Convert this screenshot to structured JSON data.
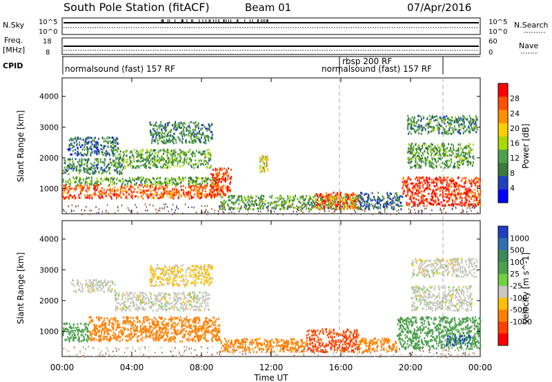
{
  "header": {
    "title": "South Pole Station (fitACF)",
    "beam": "Beam 01",
    "date": "07/Apr/2016"
  },
  "panels": {
    "nsky": {
      "label": "N.Sky",
      "ticks": [
        "10^5",
        "10^0"
      ]
    },
    "nsearch": {
      "label": "N.Search",
      "ticks": [
        "10^5",
        "10^0"
      ]
    },
    "freq": {
      "label_top": "Freq.",
      "label_bottom": "[MHz]",
      "ticks": [
        "18",
        "8"
      ]
    },
    "nave": {
      "label": "Nave",
      "ticks": [
        "60",
        "0"
      ]
    },
    "cpid": {
      "label": "CPID",
      "segments": [
        {
          "label": "normalsound (fast) 157 RF",
          "start": 0,
          "end": 16
        },
        {
          "label": "rbsp 200 RF",
          "start": 16,
          "end": 22
        },
        {
          "label": "normalsound (fast) 157 RF",
          "start": 16,
          "end": 22
        }
      ]
    }
  },
  "chart_data": [
    {
      "type": "heatmap",
      "name": "power",
      "ylabel": "Slant Range [km]",
      "ylim": [
        180,
        4600
      ],
      "yticks": [
        1000,
        2000,
        3000,
        4000
      ],
      "xlim": [
        0,
        24
      ],
      "colorbar": {
        "label": "Power [dB]",
        "ticks": [
          "4",
          "8",
          "12",
          "16",
          "20",
          "24",
          "28"
        ],
        "colors": [
          "#0000ff",
          "#2040c0",
          "#3a7a3a",
          "#4ea04e",
          "#a8d800",
          "#ffd000",
          "#ff9000",
          "#ff5000",
          "#ff0000"
        ]
      },
      "regions": [
        {
          "t0": 0.0,
          "t1": 9.0,
          "r0": 700,
          "r1": 1150,
          "v": 26
        },
        {
          "t0": 0.0,
          "t1": 9.0,
          "r0": 1150,
          "r1": 1400,
          "v": 12
        },
        {
          "t0": 0.0,
          "t1": 3.5,
          "r0": 1500,
          "r1": 2000,
          "v": 10
        },
        {
          "t0": 0.3,
          "t1": 3.2,
          "r0": 2100,
          "r1": 2700,
          "v": 8
        },
        {
          "t0": 3.0,
          "t1": 8.5,
          "r0": 1700,
          "r1": 2300,
          "v": 12
        },
        {
          "t0": 5.0,
          "t1": 8.6,
          "r0": 2500,
          "r1": 3200,
          "v": 10
        },
        {
          "t0": 8.5,
          "t1": 9.7,
          "r0": 800,
          "r1": 1700,
          "v": 28
        },
        {
          "t0": 9.0,
          "t1": 17.0,
          "r0": 350,
          "r1": 800,
          "v": 12
        },
        {
          "t0": 14.5,
          "t1": 17.0,
          "r0": 350,
          "r1": 900,
          "v": 26
        },
        {
          "t0": 17.0,
          "t1": 19.5,
          "r0": 350,
          "r1": 900,
          "v": 8
        },
        {
          "t0": 19.5,
          "t1": 24.0,
          "r0": 450,
          "r1": 1400,
          "v": 28
        },
        {
          "t0": 19.8,
          "t1": 23.6,
          "r0": 1700,
          "r1": 2500,
          "v": 12
        },
        {
          "t0": 19.8,
          "t1": 23.8,
          "r0": 2800,
          "r1": 3400,
          "v": 10
        },
        {
          "t0": 11.3,
          "t1": 11.8,
          "r0": 1500,
          "r1": 2100,
          "v": 18
        }
      ]
    },
    {
      "type": "heatmap",
      "name": "velocity",
      "ylabel": "Slant Range [km]",
      "ylim": [
        180,
        4600
      ],
      "yticks": [
        1000,
        2000,
        3000,
        4000
      ],
      "xlim": [
        0,
        24
      ],
      "xticks": [
        "00:00",
        "04:00",
        "08:00",
        "12:00",
        "16:00",
        "20:00",
        "00:00"
      ],
      "xlabel": "Time UT",
      "colorbar": {
        "label": "Velocity [m s^-1]",
        "ticks": [
          "1000",
          "500",
          "100",
          "25",
          "-25",
          "-100",
          "-500",
          "-1000"
        ],
        "colors": [
          "#2040c0",
          "#3070b0",
          "#3a8a5a",
          "#4ea04e",
          "#70d040",
          "#c8c8c0",
          "#ffc000",
          "#ff8000",
          "#ff4000",
          "#ff0000"
        ]
      },
      "regions": [
        {
          "t0": 0.0,
          "t1": 1.5,
          "r0": 700,
          "r1": 1300,
          "v": 300
        },
        {
          "t0": 1.5,
          "t1": 9.0,
          "r0": 700,
          "r1": 1500,
          "v": -250
        },
        {
          "t0": 3.0,
          "t1": 8.5,
          "r0": 1700,
          "r1": 2300,
          "v": 0
        },
        {
          "t0": 0.5,
          "t1": 3.0,
          "r0": 2300,
          "r1": 2700,
          "v": 0
        },
        {
          "t0": 5.0,
          "t1": 8.6,
          "r0": 2500,
          "r1": 3200,
          "v": -40
        },
        {
          "t0": 9.0,
          "t1": 14.0,
          "r0": 350,
          "r1": 800,
          "v": -200
        },
        {
          "t0": 14.0,
          "t1": 17.0,
          "r0": 350,
          "r1": 1100,
          "v": -700
        },
        {
          "t0": 17.0,
          "t1": 19.2,
          "r0": 350,
          "r1": 800,
          "v": -200
        },
        {
          "t0": 19.2,
          "t1": 24.0,
          "r0": 450,
          "r1": 1500,
          "v": 300
        },
        {
          "t0": 22.0,
          "t1": 23.4,
          "r0": 550,
          "r1": 900,
          "v": 1000
        },
        {
          "t0": 20.0,
          "t1": 23.5,
          "r0": 1700,
          "r1": 2500,
          "v": 0
        },
        {
          "t0": 20.0,
          "t1": 23.8,
          "r0": 2800,
          "r1": 3400,
          "v": 0
        }
      ]
    }
  ]
}
